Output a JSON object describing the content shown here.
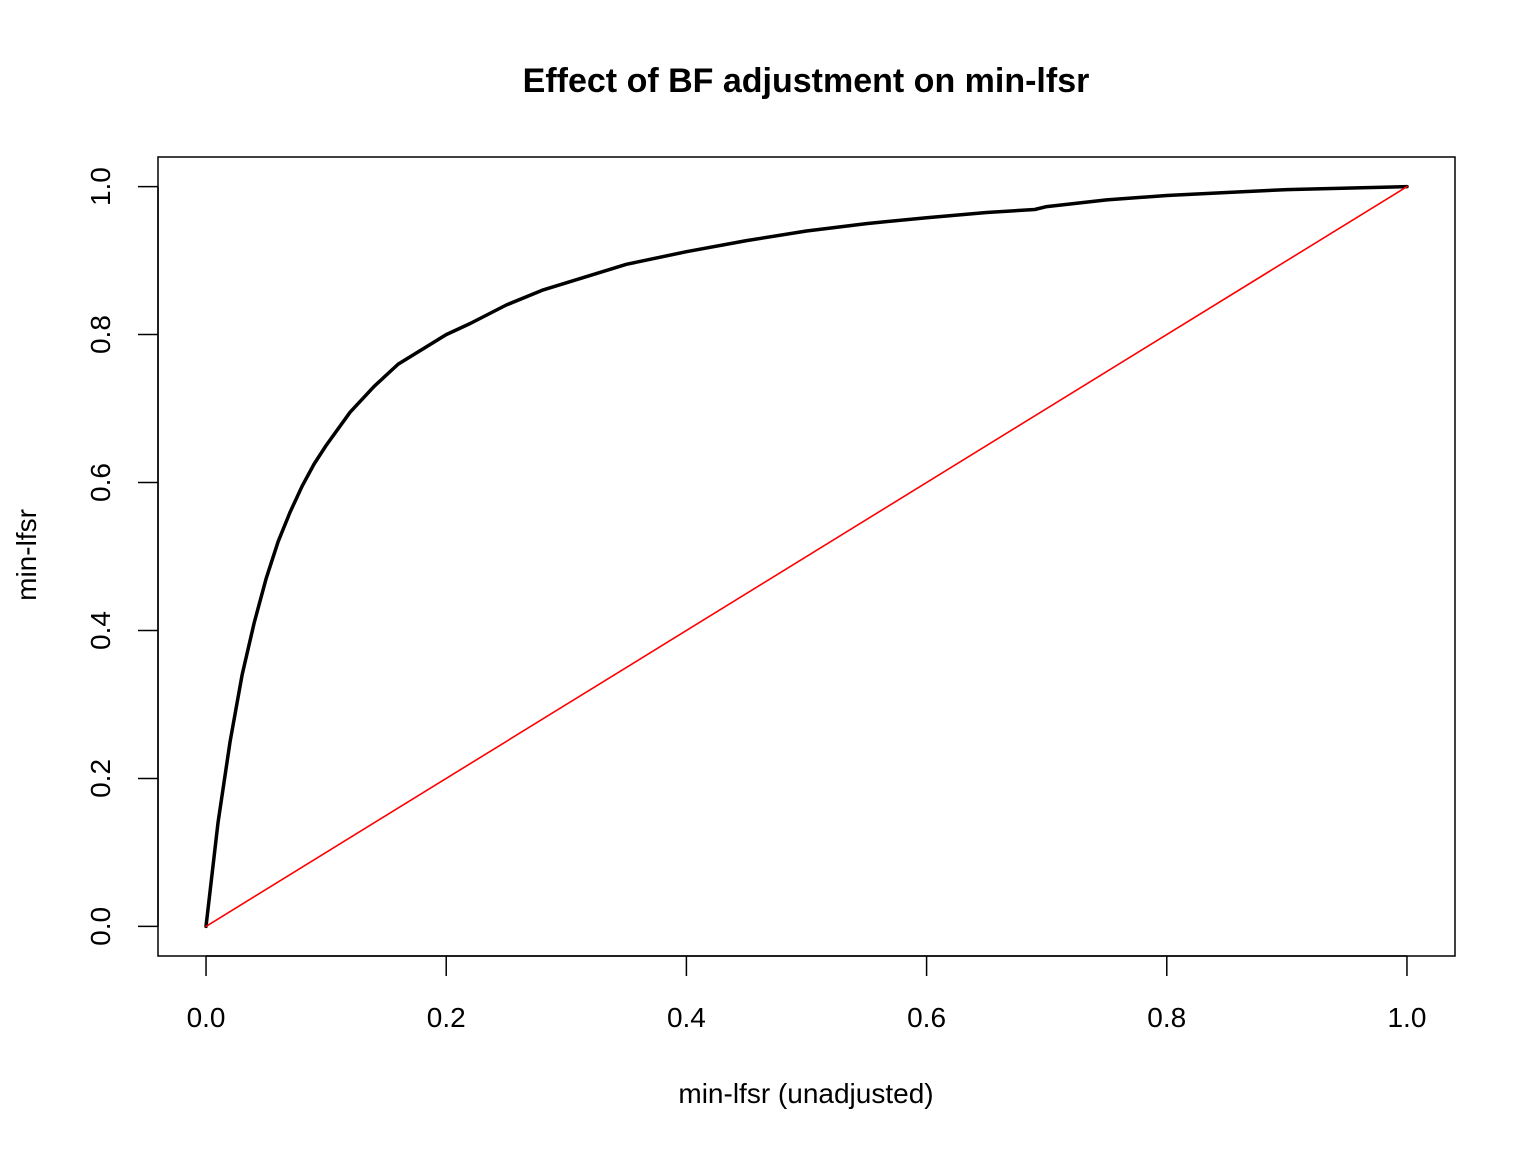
{
  "chart_data": {
    "type": "line",
    "title": "Effect of BF adjustment on min-lfsr",
    "xlabel": "min-lfsr (unadjusted)",
    "ylabel": "min-lfsr",
    "xlim": [
      -0.04,
      1.04
    ],
    "ylim": [
      -0.04,
      1.04
    ],
    "x_ticks": [
      "0.0",
      "0.2",
      "0.4",
      "0.6",
      "0.8",
      "1.0"
    ],
    "y_ticks": [
      "0.0",
      "0.2",
      "0.4",
      "0.6",
      "0.8",
      "1.0"
    ],
    "grid": false,
    "legend": "none",
    "series": [
      {
        "color": "#000000",
        "style": "thick",
        "x": [
          0.0,
          0.005,
          0.01,
          0.02,
          0.03,
          0.04,
          0.05,
          0.06,
          0.07,
          0.08,
          0.09,
          0.1,
          0.12,
          0.14,
          0.16,
          0.18,
          0.2,
          0.22,
          0.25,
          0.28,
          0.3,
          0.35,
          0.4,
          0.45,
          0.5,
          0.55,
          0.6,
          0.65,
          0.69,
          0.7,
          0.75,
          0.8,
          0.85,
          0.9,
          0.95,
          1.0
        ],
        "y": [
          0.0,
          0.07,
          0.14,
          0.25,
          0.34,
          0.41,
          0.47,
          0.52,
          0.56,
          0.595,
          0.625,
          0.65,
          0.695,
          0.73,
          0.76,
          0.78,
          0.8,
          0.815,
          0.84,
          0.86,
          0.87,
          0.895,
          0.912,
          0.927,
          0.94,
          0.95,
          0.958,
          0.965,
          0.969,
          0.973,
          0.982,
          0.988,
          0.992,
          0.996,
          0.998,
          1.0
        ]
      },
      {
        "color": "#ff0000",
        "style": "thin",
        "x": [
          0.0,
          1.0
        ],
        "y": [
          0.0,
          1.0
        ]
      }
    ]
  }
}
